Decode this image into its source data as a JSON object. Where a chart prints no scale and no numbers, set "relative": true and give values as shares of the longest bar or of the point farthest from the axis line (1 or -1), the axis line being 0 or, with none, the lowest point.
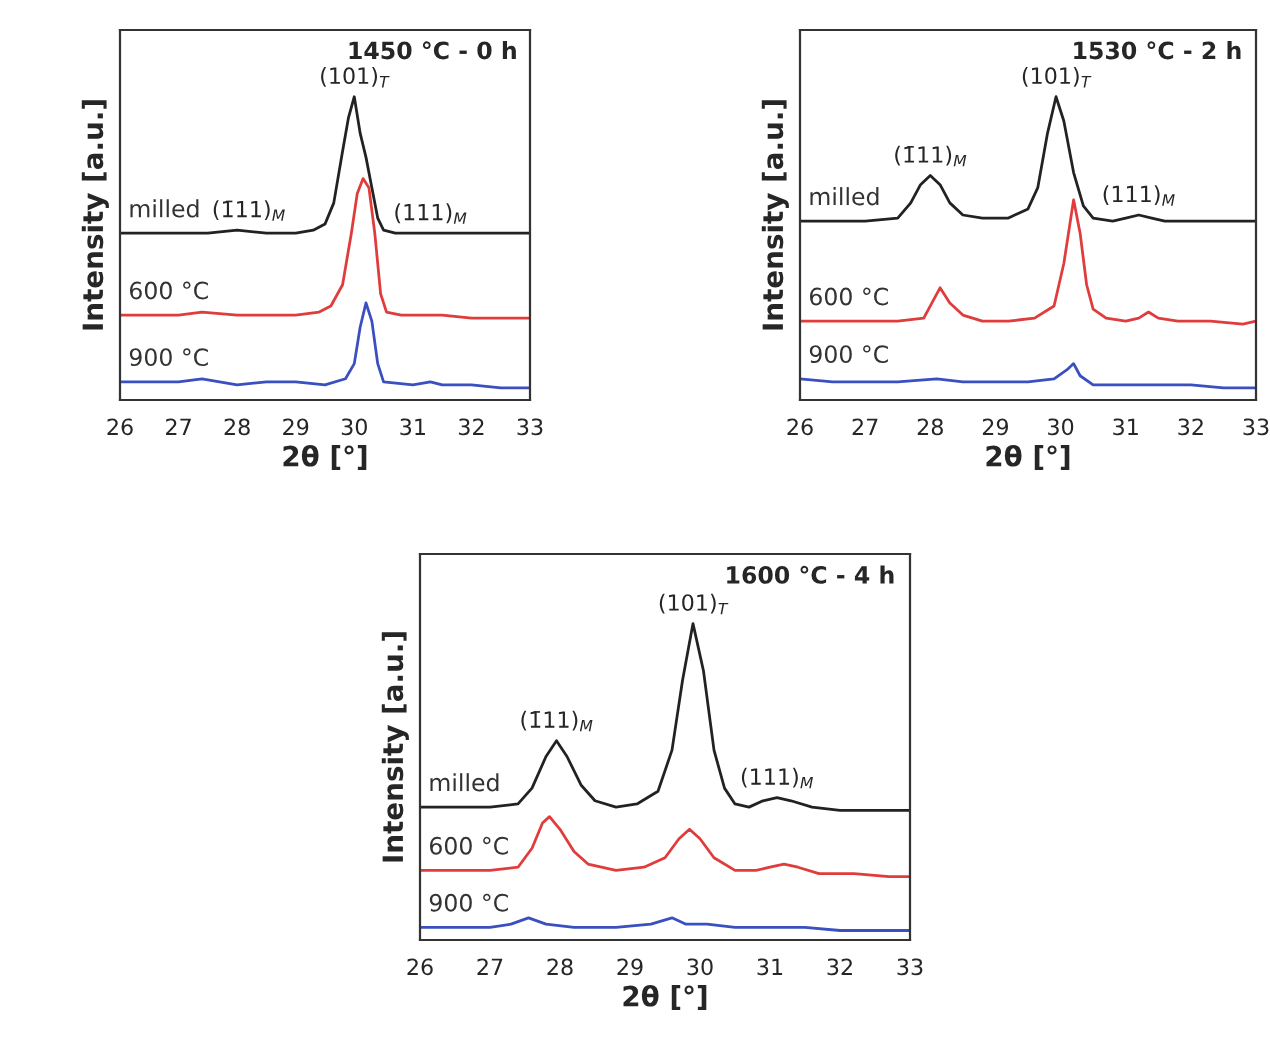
{
  "chart_data": [
    {
      "type": "line",
      "title": "1450 °C - 0 h",
      "xlabel": "2θ [°]",
      "ylabel": "Intensity [a.u.]",
      "relative": true,
      "xlim": [
        26,
        33
      ],
      "xticks": [
        26,
        27,
        28,
        29,
        30,
        31,
        32,
        33
      ],
      "tick_labels": "x",
      "legend": false,
      "grid": false,
      "annotations": [
        {
          "text": "(101)$_{T}$",
          "x": 30.0,
          "y": 1.0
        },
        {
          "text": "(1̄11)$_{M}$",
          "x": 28.2,
          "y": 0.56
        },
        {
          "text": "(111)$_{M}$",
          "x": 31.3,
          "y": 0.55
        }
      ],
      "series": [
        {
          "name": "milled",
          "color": "#222222",
          "x": [
            26,
            26.5,
            27,
            27.5,
            28,
            28.5,
            29,
            29.3,
            29.5,
            29.65,
            29.8,
            29.9,
            30.0,
            30.1,
            30.2,
            30.3,
            30.4,
            30.5,
            30.7,
            31,
            31.5,
            32,
            32.5,
            33
          ],
          "values": [
            0.55,
            0.55,
            0.55,
            0.55,
            0.56,
            0.55,
            0.55,
            0.56,
            0.58,
            0.65,
            0.82,
            0.93,
            1.0,
            0.88,
            0.8,
            0.7,
            0.6,
            0.56,
            0.55,
            0.55,
            0.55,
            0.55,
            0.55,
            0.55
          ]
        },
        {
          "name": "600 °C",
          "color": "#e03c3c",
          "x": [
            26,
            26.5,
            27,
            27.4,
            28,
            28.5,
            29,
            29.4,
            29.6,
            29.8,
            29.95,
            30.05,
            30.15,
            30.25,
            30.35,
            30.45,
            30.55,
            30.8,
            31,
            31.5,
            32,
            32.5,
            33
          ],
          "values": [
            0.28,
            0.28,
            0.28,
            0.29,
            0.28,
            0.28,
            0.28,
            0.29,
            0.31,
            0.38,
            0.55,
            0.68,
            0.73,
            0.7,
            0.55,
            0.35,
            0.29,
            0.28,
            0.28,
            0.28,
            0.27,
            0.27,
            0.27
          ]
        },
        {
          "name": "900 °C",
          "color": "#3a4fc0",
          "x": [
            26,
            26.5,
            27,
            27.4,
            28,
            28.5,
            29,
            29.5,
            29.85,
            30.0,
            30.1,
            30.2,
            30.3,
            30.4,
            30.5,
            31,
            31.3,
            31.5,
            32,
            32.5,
            33
          ],
          "values": [
            0.06,
            0.06,
            0.06,
            0.07,
            0.05,
            0.06,
            0.06,
            0.05,
            0.07,
            0.12,
            0.24,
            0.32,
            0.26,
            0.12,
            0.06,
            0.05,
            0.06,
            0.05,
            0.05,
            0.04,
            0.04
          ]
        }
      ]
    },
    {
      "type": "line",
      "title": "1530 °C - 2 h",
      "xlabel": "2θ [°]",
      "ylabel": "Intensity [a.u.]",
      "relative": true,
      "xlim": [
        26,
        33
      ],
      "xticks": [
        26,
        27,
        28,
        29,
        30,
        31,
        32,
        33
      ],
      "tick_labels": "x",
      "legend": false,
      "grid": false,
      "annotations": [
        {
          "text": "(101)$_{T}$",
          "x": 29.93,
          "y": 1.0
        },
        {
          "text": "(1̄11)$_{M}$",
          "x": 28.0,
          "y": 0.74
        },
        {
          "text": "(111)$_{M}$",
          "x": 31.2,
          "y": 0.61
        }
      ],
      "series": [
        {
          "name": "milled",
          "color": "#222222",
          "x": [
            26,
            26.5,
            27,
            27.5,
            27.7,
            27.85,
            28.0,
            28.15,
            28.3,
            28.5,
            28.8,
            29.2,
            29.5,
            29.65,
            29.8,
            29.93,
            30.05,
            30.2,
            30.35,
            30.5,
            30.8,
            31.0,
            31.2,
            31.4,
            31.6,
            32,
            32.5,
            33
          ],
          "values": [
            0.59,
            0.59,
            0.59,
            0.6,
            0.65,
            0.71,
            0.74,
            0.71,
            0.65,
            0.61,
            0.6,
            0.6,
            0.63,
            0.7,
            0.88,
            1.0,
            0.92,
            0.75,
            0.64,
            0.6,
            0.59,
            0.6,
            0.61,
            0.6,
            0.59,
            0.59,
            0.59,
            0.59
          ]
        },
        {
          "name": "600 °C",
          "color": "#e03c3c",
          "x": [
            26,
            26.5,
            27,
            27.5,
            27.9,
            28.05,
            28.15,
            28.3,
            28.5,
            28.8,
            29.2,
            29.6,
            29.9,
            30.05,
            30.2,
            30.3,
            30.4,
            30.5,
            30.7,
            31,
            31.2,
            31.35,
            31.5,
            31.8,
            32.3,
            32.8,
            33
          ],
          "values": [
            0.26,
            0.26,
            0.26,
            0.26,
            0.27,
            0.33,
            0.37,
            0.32,
            0.28,
            0.26,
            0.26,
            0.27,
            0.31,
            0.45,
            0.66,
            0.55,
            0.38,
            0.3,
            0.27,
            0.26,
            0.27,
            0.29,
            0.27,
            0.26,
            0.26,
            0.25,
            0.26
          ]
        },
        {
          "name": "900 °C",
          "color": "#3a4fc0",
          "x": [
            26,
            26.5,
            27,
            27.5,
            28.1,
            28.5,
            29,
            29.5,
            29.9,
            30.1,
            30.2,
            30.3,
            30.5,
            31,
            31.5,
            32,
            32.5,
            33
          ],
          "values": [
            0.07,
            0.06,
            0.06,
            0.06,
            0.07,
            0.06,
            0.06,
            0.06,
            0.07,
            0.1,
            0.12,
            0.08,
            0.05,
            0.05,
            0.05,
            0.05,
            0.04,
            0.04
          ]
        }
      ]
    },
    {
      "type": "line",
      "title": "1600 °C - 4 h",
      "xlabel": "2θ [°]",
      "ylabel": "Intensity [a.u.]",
      "relative": true,
      "xlim": [
        26,
        33
      ],
      "xticks": [
        26,
        27,
        28,
        29,
        30,
        31,
        32,
        33
      ],
      "tick_labels": "x",
      "legend": false,
      "grid": false,
      "annotations": [
        {
          "text": "(101)$_{T}$",
          "x": 29.9,
          "y": 1.0
        },
        {
          "text": "(1̄11)$_{M}$",
          "x": 27.95,
          "y": 0.63
        },
        {
          "text": "(111)$_{M}$",
          "x": 31.1,
          "y": 0.45
        }
      ],
      "series": [
        {
          "name": "milled",
          "color": "#222222",
          "x": [
            26,
            26.5,
            27,
            27.4,
            27.6,
            27.8,
            27.95,
            28.1,
            28.3,
            28.5,
            28.8,
            29.1,
            29.4,
            29.6,
            29.75,
            29.9,
            30.05,
            30.2,
            30.35,
            30.5,
            30.7,
            30.9,
            31.1,
            31.3,
            31.6,
            32,
            32.5,
            33
          ],
          "values": [
            0.42,
            0.42,
            0.42,
            0.43,
            0.48,
            0.58,
            0.63,
            0.58,
            0.49,
            0.44,
            0.42,
            0.43,
            0.47,
            0.6,
            0.82,
            1.0,
            0.85,
            0.6,
            0.48,
            0.43,
            0.42,
            0.44,
            0.45,
            0.44,
            0.42,
            0.41,
            0.41,
            0.41
          ]
        },
        {
          "name": "600 °C",
          "color": "#e03c3c",
          "x": [
            26,
            26.5,
            27,
            27.4,
            27.6,
            27.75,
            27.85,
            28.0,
            28.2,
            28.4,
            28.8,
            29.2,
            29.5,
            29.7,
            29.85,
            30.0,
            30.2,
            30.5,
            30.8,
            31.0,
            31.2,
            31.4,
            31.7,
            32.2,
            32.7,
            33
          ],
          "values": [
            0.22,
            0.22,
            0.22,
            0.23,
            0.29,
            0.37,
            0.39,
            0.35,
            0.28,
            0.24,
            0.22,
            0.23,
            0.26,
            0.32,
            0.35,
            0.32,
            0.26,
            0.22,
            0.22,
            0.23,
            0.24,
            0.23,
            0.21,
            0.21,
            0.2,
            0.2
          ]
        },
        {
          "name": "900 °C",
          "color": "#3a4fc0",
          "x": [
            26,
            26.5,
            27,
            27.3,
            27.55,
            27.8,
            28.2,
            28.8,
            29.3,
            29.6,
            29.8,
            30.1,
            30.5,
            30.9,
            31.5,
            32,
            32.5,
            33
          ],
          "values": [
            0.04,
            0.04,
            0.04,
            0.05,
            0.07,
            0.05,
            0.04,
            0.04,
            0.05,
            0.07,
            0.05,
            0.05,
            0.04,
            0.04,
            0.04,
            0.03,
            0.03,
            0.03
          ]
        }
      ]
    }
  ]
}
